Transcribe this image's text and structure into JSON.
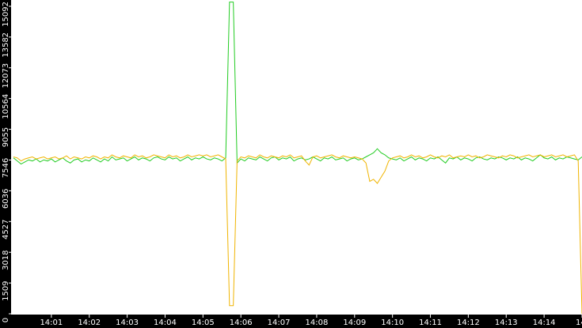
{
  "chart_data": {
    "type": "line",
    "x": [
      0,
      0.1,
      0.2,
      0.3,
      0.4,
      0.5,
      0.6,
      0.7,
      0.8,
      0.9,
      1,
      1.1,
      1.2,
      1.3,
      1.4,
      1.5,
      1.6,
      1.7,
      1.8,
      1.9,
      2,
      2.1,
      2.2,
      2.3,
      2.4,
      2.5,
      2.6,
      2.7,
      2.8,
      2.9,
      3,
      3.1,
      3.2,
      3.3,
      3.4,
      3.5,
      3.6,
      3.7,
      3.8,
      3.9,
      4,
      4.1,
      4.2,
      4.3,
      4.4,
      4.5,
      4.6,
      4.7,
      4.8,
      4.9,
      5,
      5.1,
      5.2,
      5.3,
      5.4,
      5.5,
      5.6,
      5.7,
      5.8,
      5.9,
      6,
      6.1,
      6.2,
      6.3,
      6.4,
      6.5,
      6.6,
      6.7,
      6.8,
      6.9,
      7,
      7.1,
      7.2,
      7.3,
      7.4,
      7.5,
      7.6,
      7.7,
      7.8,
      7.9,
      8,
      8.1,
      8.2,
      8.3,
      8.4,
      8.5,
      8.6,
      8.7,
      8.8,
      8.9,
      9,
      9.1,
      9.2,
      9.3,
      9.4,
      9.5,
      9.6,
      9.7,
      9.8,
      9.9,
      10,
      10.1,
      10.2,
      10.3,
      10.4,
      10.5,
      10.6,
      10.7,
      10.8,
      10.9,
      11,
      11.1,
      11.2,
      11.3,
      11.4,
      11.5,
      11.6,
      11.7,
      11.8,
      11.9,
      12,
      12.1,
      12.2,
      12.3,
      12.4,
      12.5,
      12.6,
      12.7,
      12.8,
      12.9,
      13,
      13.1,
      13.2,
      13.3,
      13.4,
      13.5,
      13.6,
      13.7,
      13.8,
      13.9,
      14,
      14.1,
      14.2,
      14.3,
      14.4,
      14.5,
      14.6,
      14.7,
      14.8,
      14.9,
      15
    ],
    "series": [
      {
        "color": "#22cc22",
        "values": [
          7650,
          7500,
          7350,
          7450,
          7550,
          7500,
          7600,
          7450,
          7550,
          7500,
          7600,
          7450,
          7550,
          7650,
          7500,
          7400,
          7550,
          7600,
          7450,
          7550,
          7500,
          7650,
          7550,
          7450,
          7600,
          7500,
          7700,
          7550,
          7600,
          7650,
          7500,
          7600,
          7700,
          7550,
          7650,
          7600,
          7500,
          7650,
          7700,
          7600,
          7550,
          7700,
          7600,
          7650,
          7500,
          7600,
          7700,
          7550,
          7650,
          7600,
          7700,
          7600,
          7550,
          7650,
          7600,
          7500,
          7650,
          15300,
          15300,
          7400,
          7600,
          7500,
          7650,
          7600,
          7550,
          7700,
          7600,
          7500,
          7650,
          7700,
          7550,
          7650,
          7600,
          7700,
          7500,
          7600,
          7650,
          7550,
          7600,
          7700,
          7600,
          7500,
          7650,
          7600,
          7700,
          7550,
          7600,
          7650,
          7500,
          7600,
          7650,
          7550,
          7600,
          7700,
          7800,
          7900,
          8100,
          7900,
          7800,
          7650,
          7600,
          7550,
          7650,
          7500,
          7600,
          7700,
          7550,
          7650,
          7600,
          7500,
          7650,
          7600,
          7700,
          7550,
          7400,
          7650,
          7600,
          7700,
          7550,
          7650,
          7600,
          7500,
          7650,
          7700,
          7600,
          7550,
          7650,
          7600,
          7700,
          7650,
          7550,
          7650,
          7600,
          7700,
          7550,
          7650,
          7600,
          7500,
          7650,
          7800,
          7650,
          7600,
          7700,
          7550,
          7650,
          7600,
          7700,
          7650,
          7600,
          7550,
          7700
        ]
      },
      {
        "color": "#f0b400",
        "values": [
          7700,
          7650,
          7500,
          7600,
          7650,
          7700,
          7600,
          7650,
          7700,
          7600,
          7650,
          7700,
          7600,
          7650,
          7750,
          7600,
          7700,
          7650,
          7600,
          7700,
          7650,
          7750,
          7700,
          7600,
          7700,
          7650,
          7800,
          7700,
          7650,
          7750,
          7700,
          7650,
          7800,
          7700,
          7750,
          7650,
          7700,
          7800,
          7750,
          7700,
          7650,
          7800,
          7700,
          7750,
          7650,
          7700,
          7800,
          7700,
          7750,
          7800,
          7750,
          7800,
          7700,
          7750,
          7800,
          7700,
          7600,
          400,
          400,
          7500,
          7700,
          7650,
          7750,
          7700,
          7650,
          7800,
          7700,
          7650,
          7750,
          7700,
          7650,
          7750,
          7700,
          7800,
          7650,
          7700,
          7750,
          7500,
          7300,
          7700,
          7750,
          7650,
          7700,
          7750,
          7800,
          7700,
          7650,
          7750,
          7700,
          7650,
          7700,
          7650,
          7600,
          7400,
          6500,
          6600,
          6400,
          6700,
          7000,
          7500,
          7650,
          7700,
          7750,
          7650,
          7700,
          7800,
          7700,
          7750,
          7650,
          7700,
          7800,
          7700,
          7650,
          7750,
          7700,
          7800,
          7650,
          7700,
          7750,
          7700,
          7800,
          7700,
          7750,
          7650,
          7700,
          7800,
          7750,
          7700,
          7650,
          7750,
          7700,
          7800,
          7750,
          7650,
          7700,
          7750,
          7800,
          7700,
          7750,
          7800,
          7700,
          7750,
          7800,
          7700,
          7750,
          7800,
          7700,
          7750,
          7800,
          7500,
          0
        ]
      }
    ],
    "xlim": [
      0,
      15
    ],
    "xticks": [
      {
        "value": 1,
        "label": "14:01"
      },
      {
        "value": 2,
        "label": "14:02"
      },
      {
        "value": 3,
        "label": "14:03"
      },
      {
        "value": 4,
        "label": "14:04"
      },
      {
        "value": 5,
        "label": "14:05"
      },
      {
        "value": 6,
        "label": "14:06"
      },
      {
        "value": 7,
        "label": "14:07"
      },
      {
        "value": 8,
        "label": "14:08"
      },
      {
        "value": 9,
        "label": "14:09"
      },
      {
        "value": 10,
        "label": "14:10"
      },
      {
        "value": 11,
        "label": "14:11"
      },
      {
        "value": 12,
        "label": "14:12"
      },
      {
        "value": 13,
        "label": "14:13"
      },
      {
        "value": 14,
        "label": "14:14"
      },
      {
        "value": 15,
        "label": "14:"
      }
    ],
    "ylim": [
      0,
      15400
    ],
    "yticks": [
      0,
      1509,
      3018,
      4527,
      6036,
      7546,
      9055,
      10564,
      12073,
      13582,
      15092
    ]
  }
}
